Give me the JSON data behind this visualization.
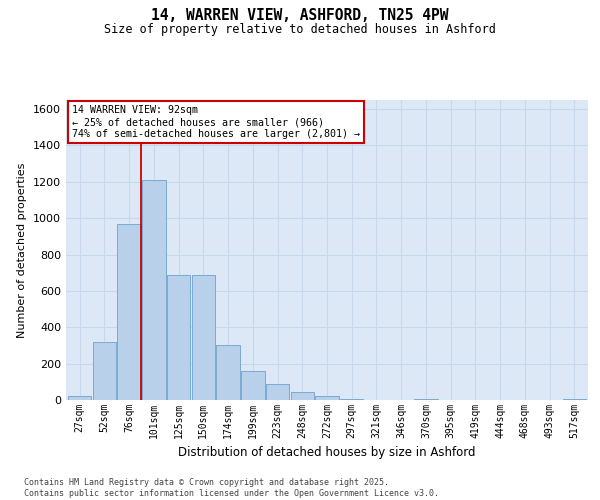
{
  "title1": "14, WARREN VIEW, ASHFORD, TN25 4PW",
  "title2": "Size of property relative to detached houses in Ashford",
  "xlabel": "Distribution of detached houses by size in Ashford",
  "ylabel": "Number of detached properties",
  "categories": [
    "27sqm",
    "52sqm",
    "76sqm",
    "101sqm",
    "125sqm",
    "150sqm",
    "174sqm",
    "199sqm",
    "223sqm",
    "248sqm",
    "272sqm",
    "297sqm",
    "321sqm",
    "346sqm",
    "370sqm",
    "395sqm",
    "419sqm",
    "444sqm",
    "468sqm",
    "493sqm",
    "517sqm"
  ],
  "values": [
    20,
    320,
    970,
    1210,
    690,
    690,
    300,
    160,
    90,
    45,
    20,
    5,
    0,
    0,
    5,
    0,
    0,
    0,
    0,
    0,
    5
  ],
  "bar_color": "#b8d0ea",
  "bar_edge_color": "#7aaad0",
  "grid_color": "#c8d8ec",
  "background_color": "#dce8f5",
  "vline_color": "#cc0000",
  "annotation_text": "14 WARREN VIEW: 92sqm\n← 25% of detached houses are smaller (966)\n74% of semi-detached houses are larger (2,801) →",
  "annotation_box_facecolor": "#ffffff",
  "annotation_box_edgecolor": "#cc0000",
  "ylim": [
    0,
    1650
  ],
  "yticks": [
    0,
    200,
    400,
    600,
    800,
    1000,
    1200,
    1400,
    1600
  ],
  "footer": "Contains HM Land Registry data © Crown copyright and database right 2025.\nContains public sector information licensed under the Open Government Licence v3.0."
}
